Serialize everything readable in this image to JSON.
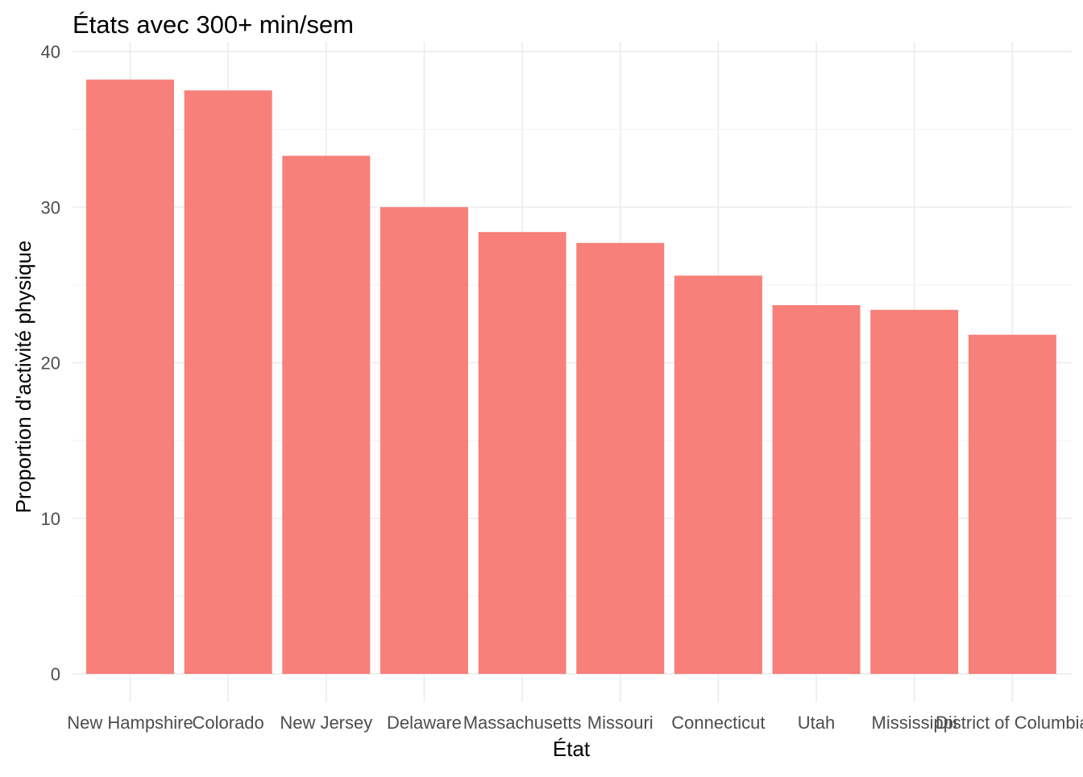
{
  "chart_data": {
    "type": "bar",
    "title": "États avec 300+ min/sem",
    "xlabel": "État",
    "ylabel": "Proportion d'activité physique",
    "categories": [
      "New Hampshire",
      "Colorado",
      "New Jersey",
      "Delaware",
      "Massachusetts",
      "Missouri",
      "Connecticut",
      "Utah",
      "Mississippi",
      "District of Columbia"
    ],
    "values": [
      38.2,
      37.5,
      33.3,
      30.0,
      28.4,
      27.7,
      25.6,
      23.7,
      23.4,
      21.8
    ],
    "ylim": [
      0,
      40
    ],
    "yticks": [
      0,
      10,
      20,
      30,
      40
    ],
    "grid": true,
    "colors": {
      "bar": "#F8807A",
      "grid_major": "#EBEBEB",
      "grid_minor": "#F4F4F4",
      "tick_text": "#4D4D4D",
      "text": "#000000"
    }
  }
}
